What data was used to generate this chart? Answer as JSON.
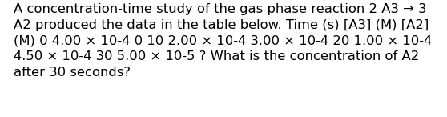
{
  "line1": "A concentration-time study of the gas phase reaction 2 A3 → 3",
  "line2": "A2 produced the data in the table below. Time (s) [A3] (M) [A2]",
  "line3": "(M) 0 4.00 × 10-4 0 10 2.00 × 10-4 3.00 × 10-4 20 1.00 × 10-4",
  "line4": "4.50 × 10-4 30 5.00 × 10-5 ? What is the concentration of A2",
  "line5": "after 30 seconds?",
  "background_color": "#ffffff",
  "text_color": "#000000",
  "font_size": 11.8,
  "fig_width": 5.58,
  "fig_height": 1.46,
  "dpi": 100
}
